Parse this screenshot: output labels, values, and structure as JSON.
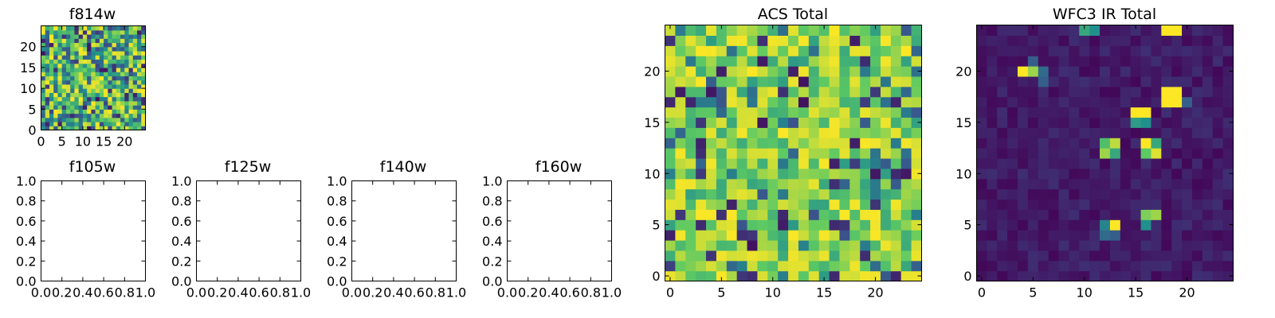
{
  "colormap": [
    "#440154",
    "#3b528b",
    "#21908d",
    "#5dc963",
    "#fde725"
  ],
  "chart_data": [
    {
      "id": "f814w",
      "type": "heatmap",
      "title": "f814w",
      "grid_size": 25,
      "xlim": [
        0,
        25
      ],
      "ylim": [
        0,
        25
      ],
      "xticks": [
        "0",
        "5",
        "10",
        "15",
        "20"
      ],
      "yticks": [
        "0",
        "5",
        "10",
        "15",
        "20"
      ],
      "tick_values": [
        0,
        5,
        10,
        15,
        20
      ],
      "pattern": "noise",
      "seed": 11,
      "vmin_frac": 0.0
    },
    {
      "id": "f105w",
      "type": "heatmap",
      "title": "f105w",
      "empty": true,
      "xlim": [
        0,
        1
      ],
      "ylim": [
        0,
        1
      ],
      "xticks": [
        "0.0",
        "0.2",
        "0.4",
        "0.6",
        "0.8",
        "1.0"
      ],
      "yticks": [
        "0.0",
        "0.2",
        "0.4",
        "0.6",
        "0.8",
        "1.0"
      ],
      "tick_values": [
        0,
        0.2,
        0.4,
        0.6,
        0.8,
        1.0
      ]
    },
    {
      "id": "f125w",
      "type": "heatmap",
      "title": "f125w",
      "empty": true,
      "xlim": [
        0,
        1
      ],
      "ylim": [
        0,
        1
      ],
      "xticks": [
        "0.0",
        "0.2",
        "0.4",
        "0.6",
        "0.8",
        "1.0"
      ],
      "yticks": [
        "0.0",
        "0.2",
        "0.4",
        "0.6",
        "0.8",
        "1.0"
      ],
      "tick_values": [
        0,
        0.2,
        0.4,
        0.6,
        0.8,
        1.0
      ]
    },
    {
      "id": "f140w",
      "type": "heatmap",
      "title": "f140w",
      "empty": true,
      "xlim": [
        0,
        1
      ],
      "ylim": [
        0,
        1
      ],
      "xticks": [
        "0.0",
        "0.2",
        "0.4",
        "0.6",
        "0.8",
        "1.0"
      ],
      "yticks": [
        "0.0",
        "0.2",
        "0.4",
        "0.6",
        "0.8",
        "1.0"
      ],
      "tick_values": [
        0,
        0.2,
        0.4,
        0.6,
        0.8,
        1.0
      ]
    },
    {
      "id": "f160w",
      "type": "heatmap",
      "title": "f160w",
      "empty": true,
      "xlim": [
        0,
        1
      ],
      "ylim": [
        0,
        1
      ],
      "xticks": [
        "0.0",
        "0.2",
        "0.4",
        "0.6",
        "0.8",
        "1.0"
      ],
      "yticks": [
        "0.0",
        "0.2",
        "0.4",
        "0.6",
        "0.8",
        "1.0"
      ],
      "tick_values": [
        0,
        0.2,
        0.4,
        0.6,
        0.8,
        1.0
      ]
    },
    {
      "id": "acs_total",
      "type": "heatmap",
      "title": "ACS Total",
      "grid_size": 25,
      "xlim": [
        -0.5,
        24.5
      ],
      "ylim": [
        -0.5,
        24.5
      ],
      "xticks": [
        "0",
        "5",
        "10",
        "15",
        "20"
      ],
      "yticks": [
        "0",
        "5",
        "10",
        "15",
        "20"
      ],
      "tick_values": [
        0,
        5,
        10,
        15,
        20
      ],
      "pattern": "noise",
      "seed": 29,
      "vmin_frac": 0.45
    },
    {
      "id": "wfc3_ir_total",
      "type": "heatmap",
      "title": "WFC3 IR Total",
      "grid_size": 25,
      "xlim": [
        -0.5,
        24.5
      ],
      "ylim": [
        -0.5,
        24.5
      ],
      "xticks": [
        "0",
        "5",
        "10",
        "15",
        "20"
      ],
      "yticks": [
        "0",
        "5",
        "10",
        "15",
        "20"
      ],
      "tick_values": [
        0,
        5,
        10,
        15,
        20
      ],
      "pattern": "sources",
      "seed": 47,
      "hot_pixels": [
        [
          18,
          24,
          1.0
        ],
        [
          19,
          24,
          1.0
        ],
        [
          10,
          24,
          0.6
        ],
        [
          11,
          24,
          0.5
        ],
        [
          4,
          20,
          1.0
        ],
        [
          5,
          20,
          0.85
        ],
        [
          5,
          21,
          0.3
        ],
        [
          6,
          20,
          0.35
        ],
        [
          6,
          19,
          0.3
        ],
        [
          18,
          18,
          1.0
        ],
        [
          19,
          18,
          1.0
        ],
        [
          18,
          17,
          1.0
        ],
        [
          19,
          17,
          1.0
        ],
        [
          20,
          17,
          0.3
        ],
        [
          15,
          16,
          1.0
        ],
        [
          16,
          16,
          1.0
        ],
        [
          15,
          15,
          0.55
        ],
        [
          16,
          15,
          0.5
        ],
        [
          12,
          13,
          0.7
        ],
        [
          13,
          13,
          0.9
        ],
        [
          16,
          13,
          1.0
        ],
        [
          17,
          13,
          0.6
        ],
        [
          12,
          12,
          0.85
        ],
        [
          13,
          12,
          0.6
        ],
        [
          16,
          12,
          0.75
        ],
        [
          17,
          12,
          0.95
        ],
        [
          16,
          6,
          0.8
        ],
        [
          17,
          6,
          0.85
        ],
        [
          12,
          5,
          0.45
        ],
        [
          13,
          5,
          1.0
        ],
        [
          16,
          5,
          0.5
        ],
        [
          12,
          4,
          0.35
        ],
        [
          13,
          4,
          0.3
        ]
      ]
    }
  ]
}
